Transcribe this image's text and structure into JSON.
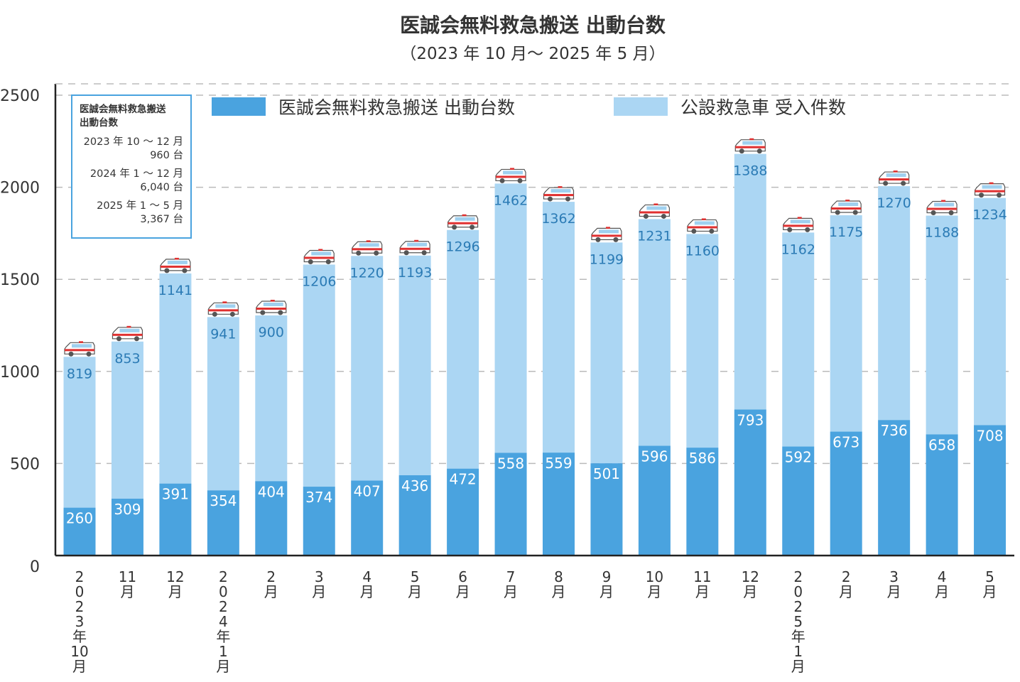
{
  "chart_data": {
    "type": "bar",
    "stacked": true,
    "title": "医誠会無料救急搬送 出動台数",
    "subtitle": "（2023 年 10 月〜 2025 年 5 月）",
    "categories": [
      "2023年10月",
      "11月",
      "12月",
      "2024年1月",
      "2月",
      "3月",
      "4月",
      "5月",
      "6月",
      "7月",
      "8月",
      "9月",
      "10月",
      "11月",
      "12月",
      "2025年1月",
      "2月",
      "3月",
      "4月",
      "5月"
    ],
    "series": [
      {
        "name": "医誠会無料救急搬送 出動台数",
        "color": "#4aa3df",
        "values": [
          260,
          309,
          391,
          354,
          404,
          374,
          407,
          436,
          472,
          558,
          559,
          501,
          596,
          586,
          793,
          592,
          673,
          736,
          658,
          708
        ]
      },
      {
        "name": "公設救急車 受入件数",
        "color": "#abd6f3",
        "values": [
          819,
          853,
          1141,
          941,
          900,
          1206,
          1220,
          1193,
          1296,
          1462,
          1362,
          1199,
          1231,
          1160,
          1388,
          1162,
          1175,
          1270,
          1188,
          1234
        ]
      }
    ],
    "ylim": [
      0,
      2500
    ],
    "yticks": [
      0,
      500,
      1000,
      1500,
      2000,
      2500
    ],
    "grid": "horizontal dashed",
    "legend_position": "top",
    "bar_top_icon": "ambulance-icon"
  },
  "infobox": {
    "title": "医誠会無料救急搬送出動台数",
    "title_line1": "医誠会無料救急搬送",
    "title_line2": "出動台数",
    "entries": [
      {
        "period": "2023 年 10 〜 12 月",
        "count": "960 台"
      },
      {
        "period": "2024 年 1 〜 12 月",
        "count": "6,040 台"
      },
      {
        "period": "2025 年 1 〜 5 月",
        "count": "3,367 台"
      }
    ]
  }
}
